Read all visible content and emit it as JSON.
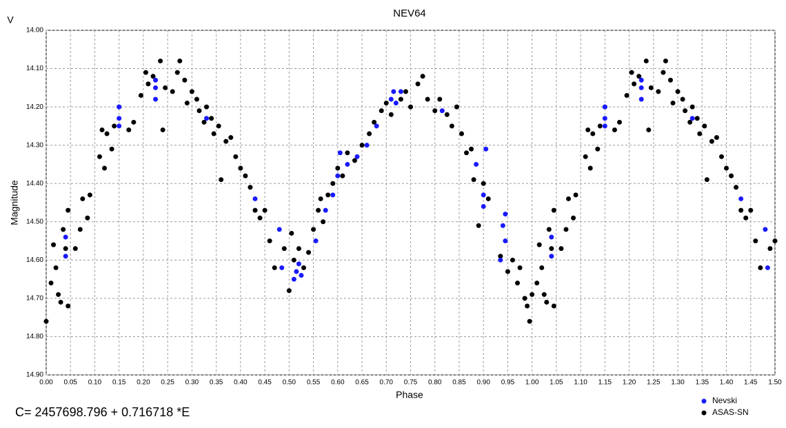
{
  "chart_data": {
    "type": "scatter",
    "title": "NEV64",
    "y_axis_unit": "V",
    "y_label": "Magnitude",
    "x_label": "Phase",
    "annotation": "C= 2457698.796 + 0.716718 *E",
    "grid": true,
    "legend": "bottom-right",
    "xlim": [
      0,
      1.5
    ],
    "ylim": [
      14.9,
      14.0
    ],
    "yticks": [
      {
        "value": 14.0,
        "label": "14.00"
      },
      {
        "value": 14.1,
        "label": "14.10"
      },
      {
        "value": 14.2,
        "label": "14.20"
      },
      {
        "value": 14.3,
        "label": "14.30"
      },
      {
        "value": 14.4,
        "label": "14.40"
      },
      {
        "value": 14.5,
        "label": "14.50"
      },
      {
        "value": 14.6,
        "label": "14.60"
      },
      {
        "value": 14.7,
        "label": "14.70"
      },
      {
        "value": 14.8,
        "label": "14.80"
      },
      {
        "value": 14.9,
        "label": "14.90"
      }
    ],
    "xticks": [
      {
        "value": 0,
        "label": "0.00"
      },
      {
        "value": 0.05,
        "label": "0.05"
      },
      {
        "value": 0.1,
        "label": "0.10"
      },
      {
        "value": 0.15,
        "label": "0.15"
      },
      {
        "value": 0.2,
        "label": "0.20"
      },
      {
        "value": 0.25,
        "label": "0.25"
      },
      {
        "value": 0.3,
        "label": "0.30"
      },
      {
        "value": 0.35,
        "label": "0.35"
      },
      {
        "value": 0.4,
        "label": "0.40"
      },
      {
        "value": 0.45,
        "label": "0.45"
      },
      {
        "value": 0.5,
        "label": "0.50"
      },
      {
        "value": 0.55,
        "label": "0.55"
      },
      {
        "value": 0.6,
        "label": "0.60"
      },
      {
        "value": 0.65,
        "label": "0.65"
      },
      {
        "value": 0.7,
        "label": "0.70"
      },
      {
        "value": 0.75,
        "label": "0.75"
      },
      {
        "value": 0.8,
        "label": "0.80"
      },
      {
        "value": 0.85,
        "label": "0.85"
      },
      {
        "value": 0.9,
        "label": "0.90"
      },
      {
        "value": 0.95,
        "label": "0.95"
      },
      {
        "value": 1,
        "label": "1.00"
      },
      {
        "value": 1.05,
        "label": "1.05"
      },
      {
        "value": 1.1,
        "label": "1.10"
      },
      {
        "value": 1.15,
        "label": "1.15"
      },
      {
        "value": 1.2,
        "label": "1.20"
      },
      {
        "value": 1.25,
        "label": "1.25"
      },
      {
        "value": 1.3,
        "label": "1.30"
      },
      {
        "value": 1.35,
        "label": "1.35"
      },
      {
        "value": 1.4,
        "label": "1.40"
      },
      {
        "value": 1.45,
        "label": "1.45"
      },
      {
        "value": 1.5,
        "label": "1.50"
      }
    ],
    "series": [
      {
        "name": "ASAS-SN",
        "color": "#000000",
        "x": [
          0.0,
          0.01,
          0.015,
          0.02,
          0.025,
          0.03,
          0.035,
          0.04,
          0.045,
          0.045,
          0.06,
          0.07,
          0.075,
          0.085,
          0.09,
          0.11,
          0.115,
          0.12,
          0.125,
          0.135,
          0.14,
          0.15,
          0.17,
          0.18,
          0.195,
          0.205,
          0.21,
          0.22,
          0.235,
          0.24,
          0.245,
          0.26,
          0.27,
          0.275,
          0.285,
          0.29,
          0.3,
          0.31,
          0.315,
          0.325,
          0.33,
          0.34,
          0.345,
          0.355,
          0.36,
          0.37,
          0.38,
          0.39,
          0.4,
          0.41,
          0.42,
          0.43,
          0.44,
          0.45,
          0.46,
          0.47,
          0.49,
          0.5,
          0.505,
          0.51,
          0.52,
          0.53,
          0.54,
          0.55,
          0.56,
          0.565,
          0.57,
          0.58,
          0.59,
          0.6,
          0.61,
          0.62,
          0.635,
          0.65,
          0.665,
          0.675,
          0.69,
          0.7,
          0.71,
          0.73,
          0.74,
          0.75,
          0.765,
          0.775,
          0.785,
          0.8,
          0.81,
          0.825,
          0.835,
          0.845,
          0.855,
          0.865,
          0.875,
          0.88,
          0.89,
          0.9,
          0.91,
          0.935,
          0.95,
          0.96,
          0.97,
          0.975,
          0.985,
          0.99,
          0.995,
          1.0,
          1.01,
          1.015,
          1.02,
          1.025,
          1.03,
          1.035,
          1.04,
          1.045,
          1.045,
          1.06,
          1.07,
          1.075,
          1.085,
          1.09,
          1.11,
          1.115,
          1.12,
          1.125,
          1.135,
          1.14,
          1.15,
          1.17,
          1.18,
          1.195,
          1.205,
          1.21,
          1.22,
          1.235,
          1.24,
          1.245,
          1.26,
          1.27,
          1.275,
          1.285,
          1.29,
          1.3,
          1.31,
          1.315,
          1.325,
          1.33,
          1.34,
          1.345,
          1.355,
          1.36,
          1.37,
          1.38,
          1.39,
          1.4,
          1.41,
          1.42,
          1.43,
          1.44,
          1.45,
          1.46,
          1.47,
          1.49,
          1.5
        ],
        "values": [
          14.76,
          14.66,
          14.56,
          14.62,
          14.69,
          14.71,
          14.52,
          14.57,
          14.47,
          14.72,
          14.57,
          14.52,
          14.44,
          14.49,
          14.43,
          14.33,
          14.26,
          14.36,
          14.27,
          14.31,
          14.25,
          14.2,
          14.26,
          14.24,
          14.17,
          14.11,
          14.14,
          14.12,
          14.08,
          14.26,
          14.15,
          14.16,
          14.11,
          14.08,
          14.13,
          14.19,
          14.16,
          14.18,
          14.21,
          14.24,
          14.2,
          14.23,
          14.27,
          14.25,
          14.39,
          14.29,
          14.28,
          14.33,
          14.36,
          14.38,
          14.41,
          14.47,
          14.49,
          14.47,
          14.55,
          14.62,
          14.57,
          14.68,
          14.53,
          14.6,
          14.57,
          14.62,
          14.58,
          14.52,
          14.47,
          14.44,
          14.5,
          14.43,
          14.4,
          14.36,
          14.38,
          14.32,
          14.34,
          14.3,
          14.27,
          14.24,
          14.21,
          14.19,
          14.22,
          14.18,
          14.16,
          14.2,
          14.14,
          14.12,
          14.18,
          14.21,
          14.18,
          14.22,
          14.25,
          14.2,
          14.27,
          14.32,
          14.31,
          14.39,
          14.51,
          14.4,
          14.44,
          14.59,
          14.63,
          14.6,
          14.66,
          14.62,
          14.7,
          14.72,
          14.76,
          14.69,
          14.66,
          14.56,
          14.62,
          14.69,
          14.71,
          14.52,
          14.57,
          14.47,
          14.72,
          14.57,
          14.52,
          14.44,
          14.49,
          14.43,
          14.33,
          14.26,
          14.36,
          14.27,
          14.31,
          14.25,
          14.2,
          14.26,
          14.24,
          14.17,
          14.11,
          14.14,
          14.12,
          14.08,
          14.26,
          14.15,
          14.16,
          14.11,
          14.08,
          14.13,
          14.19,
          14.16,
          14.18,
          14.21,
          14.24,
          14.2,
          14.23,
          14.27,
          14.25,
          14.39,
          14.29,
          14.28,
          14.33,
          14.36,
          14.38,
          14.41,
          14.47,
          14.49,
          14.47,
          14.55,
          14.62,
          14.57,
          14.55
        ]
      },
      {
        "name": "Nevski",
        "color": "#1a1aff",
        "x": [
          0.04,
          0.04,
          0.15,
          0.15,
          0.15,
          0.225,
          0.225,
          0.225,
          0.33,
          0.43,
          0.48,
          0.485,
          0.51,
          0.515,
          0.52,
          0.525,
          0.555,
          0.575,
          0.59,
          0.6,
          0.605,
          0.62,
          0.64,
          0.66,
          0.68,
          0.71,
          0.715,
          0.72,
          0.73,
          0.815,
          0.885,
          0.9,
          0.9,
          0.905,
          0.935,
          0.94,
          0.945,
          0.945,
          1.04,
          1.04,
          1.15,
          1.15,
          1.15,
          1.225,
          1.225,
          1.225,
          1.33,
          1.43,
          1.48,
          1.485
        ],
        "values": [
          14.54,
          14.59,
          14.2,
          14.23,
          14.25,
          14.13,
          14.15,
          14.18,
          14.23,
          14.44,
          14.52,
          14.62,
          14.65,
          14.63,
          14.61,
          14.64,
          14.55,
          14.47,
          14.43,
          14.38,
          14.32,
          14.35,
          14.33,
          14.3,
          14.25,
          14.18,
          14.16,
          14.19,
          14.16,
          14.21,
          14.35,
          14.43,
          14.46,
          14.31,
          14.6,
          14.51,
          14.48,
          14.55,
          14.54,
          14.59,
          14.2,
          14.23,
          14.25,
          14.13,
          14.15,
          14.18,
          14.23,
          14.44,
          14.52,
          14.62
        ]
      }
    ]
  }
}
